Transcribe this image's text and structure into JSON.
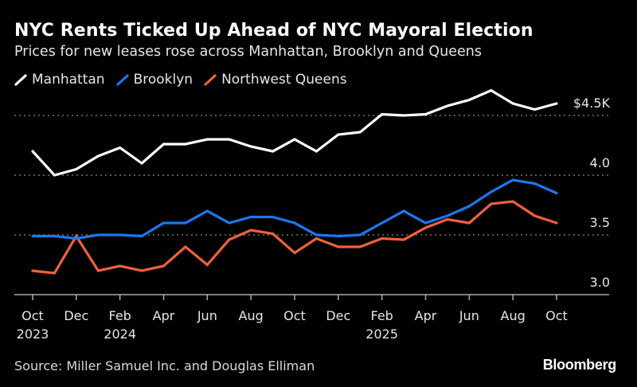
{
  "title": "NYC Rents Ticked Up Ahead of NYC Mayoral Election",
  "subtitle": "Prices for new leases rose across Manhattan, Brooklyn and Queens",
  "source": "Source: Miller Samuel Inc. and Douglas Elliman",
  "logo": "Bloomberg",
  "chart_data": {
    "type": "line",
    "title": "NYC Rents Ticked Up Ahead of NYC Mayoral Election",
    "subtitle": "Prices for new leases rose across Manhattan, Brooklyn and Queens",
    "x": [
      "2023-10",
      "2023-11",
      "2023-12",
      "2024-01",
      "2024-02",
      "2024-03",
      "2024-04",
      "2024-05",
      "2024-06",
      "2024-07",
      "2024-08",
      "2024-09",
      "2024-10",
      "2024-11",
      "2024-12",
      "2025-01",
      "2025-02",
      "2025-03",
      "2025-04",
      "2025-05",
      "2025-06",
      "2025-07",
      "2025-08",
      "2025-09",
      "2025-10"
    ],
    "x_ticks": [
      {
        "month": "Oct",
        "year": "2023",
        "x": "2023-10"
      },
      {
        "month": "Dec",
        "year": "",
        "x": "2023-12"
      },
      {
        "month": "Feb",
        "year": "2024",
        "x": "2024-02"
      },
      {
        "month": "Apr",
        "year": "",
        "x": "2024-04"
      },
      {
        "month": "Jun",
        "year": "",
        "x": "2024-06"
      },
      {
        "month": "Aug",
        "year": "",
        "x": "2024-08"
      },
      {
        "month": "Oct",
        "year": "",
        "x": "2024-10"
      },
      {
        "month": "Dec",
        "year": "",
        "x": "2024-12"
      },
      {
        "month": "Feb",
        "year": "2025",
        "x": "2025-02"
      },
      {
        "month": "Apr",
        "year": "",
        "x": "2025-04"
      },
      {
        "month": "Jun",
        "year": "",
        "x": "2025-06"
      },
      {
        "month": "Aug",
        "year": "",
        "x": "2025-08"
      },
      {
        "month": "Oct",
        "year": "",
        "x": "2025-10"
      }
    ],
    "y_ticks": [
      {
        "value": 4.5,
        "label": "$4.5K"
      },
      {
        "value": 4.0,
        "label": "4.0"
      },
      {
        "value": 3.5,
        "label": "3.5"
      },
      {
        "value": 3.0,
        "label": "3.0"
      }
    ],
    "ylim": [
      3.0,
      4.8
    ],
    "grid": "horizontal dotted",
    "legend_placement": "top-left",
    "series": [
      {
        "name": "Manhattan",
        "color": "#ffffff",
        "values": [
          4.2,
          4.0,
          4.05,
          4.16,
          4.23,
          4.1,
          4.26,
          4.26,
          4.3,
          4.3,
          4.24,
          4.2,
          4.3,
          4.2,
          4.34,
          4.36,
          4.51,
          4.5,
          4.51,
          4.58,
          4.63,
          4.71,
          4.6,
          4.55,
          4.6
        ]
      },
      {
        "name": "Brooklyn",
        "color": "#1a78f0",
        "values": [
          3.49,
          3.49,
          3.47,
          3.5,
          3.5,
          3.49,
          3.6,
          3.6,
          3.7,
          3.6,
          3.65,
          3.65,
          3.6,
          3.5,
          3.49,
          3.5,
          3.6,
          3.7,
          3.6,
          3.66,
          3.74,
          3.86,
          3.96,
          3.93,
          3.85
        ]
      },
      {
        "name": "Northwest Queens",
        "color": "#f0603a",
        "values": [
          3.2,
          3.18,
          3.49,
          3.2,
          3.24,
          3.2,
          3.24,
          3.4,
          3.25,
          3.46,
          3.54,
          3.51,
          3.35,
          3.47,
          3.4,
          3.4,
          3.47,
          3.46,
          3.56,
          3.63,
          3.6,
          3.76,
          3.78,
          3.66,
          3.6
        ]
      }
    ]
  }
}
